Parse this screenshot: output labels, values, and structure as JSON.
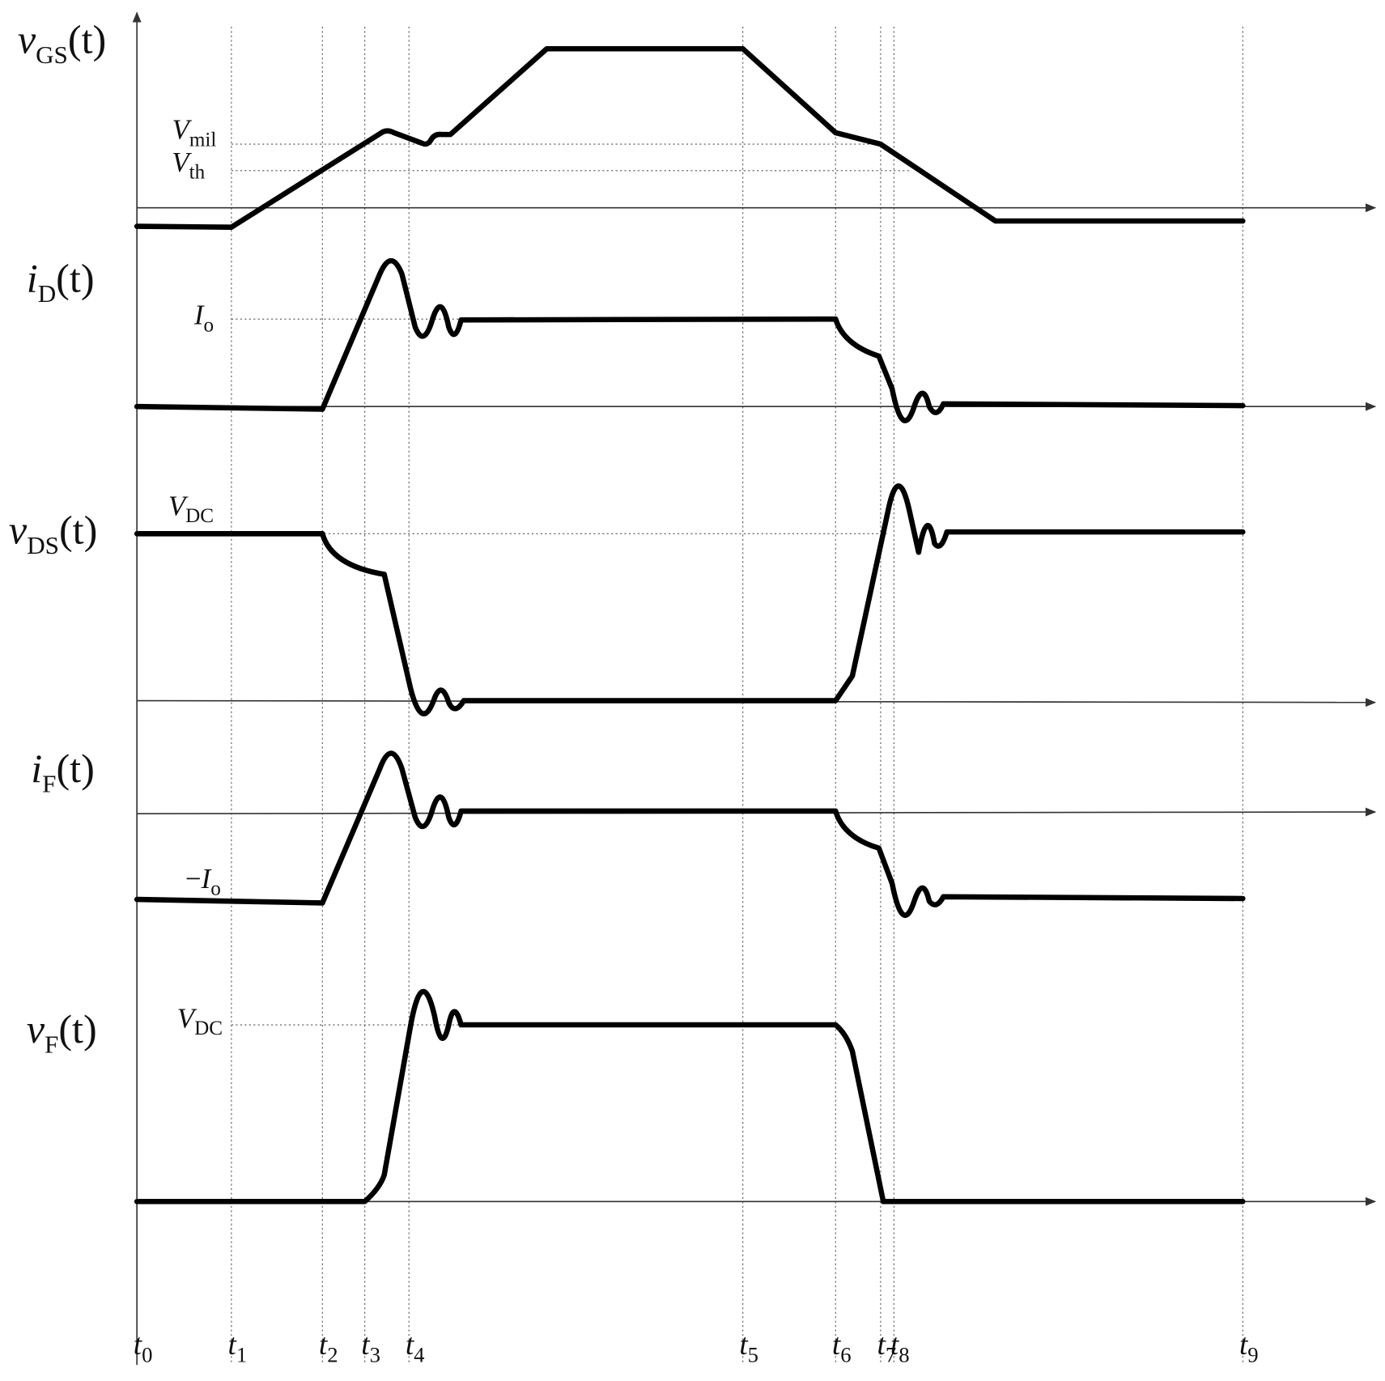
{
  "signals": [
    {
      "symbol": "v",
      "subscript": "GS",
      "argument": "(t)"
    },
    {
      "symbol": "i",
      "subscript": "D",
      "argument": "(t)"
    },
    {
      "symbol": "v",
      "subscript": "DS",
      "argument": "(t)"
    },
    {
      "symbol": "i",
      "subscript": "F",
      "argument": "(t)"
    },
    {
      "symbol": "v",
      "subscript": "F",
      "argument": "(t)"
    }
  ],
  "levels": [
    {
      "symbol": "V",
      "subscript": "mil"
    },
    {
      "symbol": "V",
      "subscript": "th"
    },
    {
      "symbol": "I",
      "subscript": "o"
    },
    {
      "symbol": "V",
      "subscript": "DC"
    },
    {
      "prefix": "−",
      "symbol": "I",
      "subscript": "o"
    },
    {
      "symbol": "V",
      "subscript": "DC"
    }
  ],
  "time_marks": [
    {
      "symbol": "t",
      "subscript": "0"
    },
    {
      "symbol": "t",
      "subscript": "1"
    },
    {
      "symbol": "t",
      "subscript": "2"
    },
    {
      "symbol": "t",
      "subscript": "3"
    },
    {
      "symbol": "t",
      "subscript": "4"
    },
    {
      "symbol": "t",
      "subscript": "5"
    },
    {
      "symbol": "t",
      "subscript": "6"
    },
    {
      "symbol": "t",
      "subscript": "7"
    },
    {
      "symbol": "t",
      "subscript": "8"
    },
    {
      "symbol": "t",
      "subscript": "9"
    }
  ]
}
